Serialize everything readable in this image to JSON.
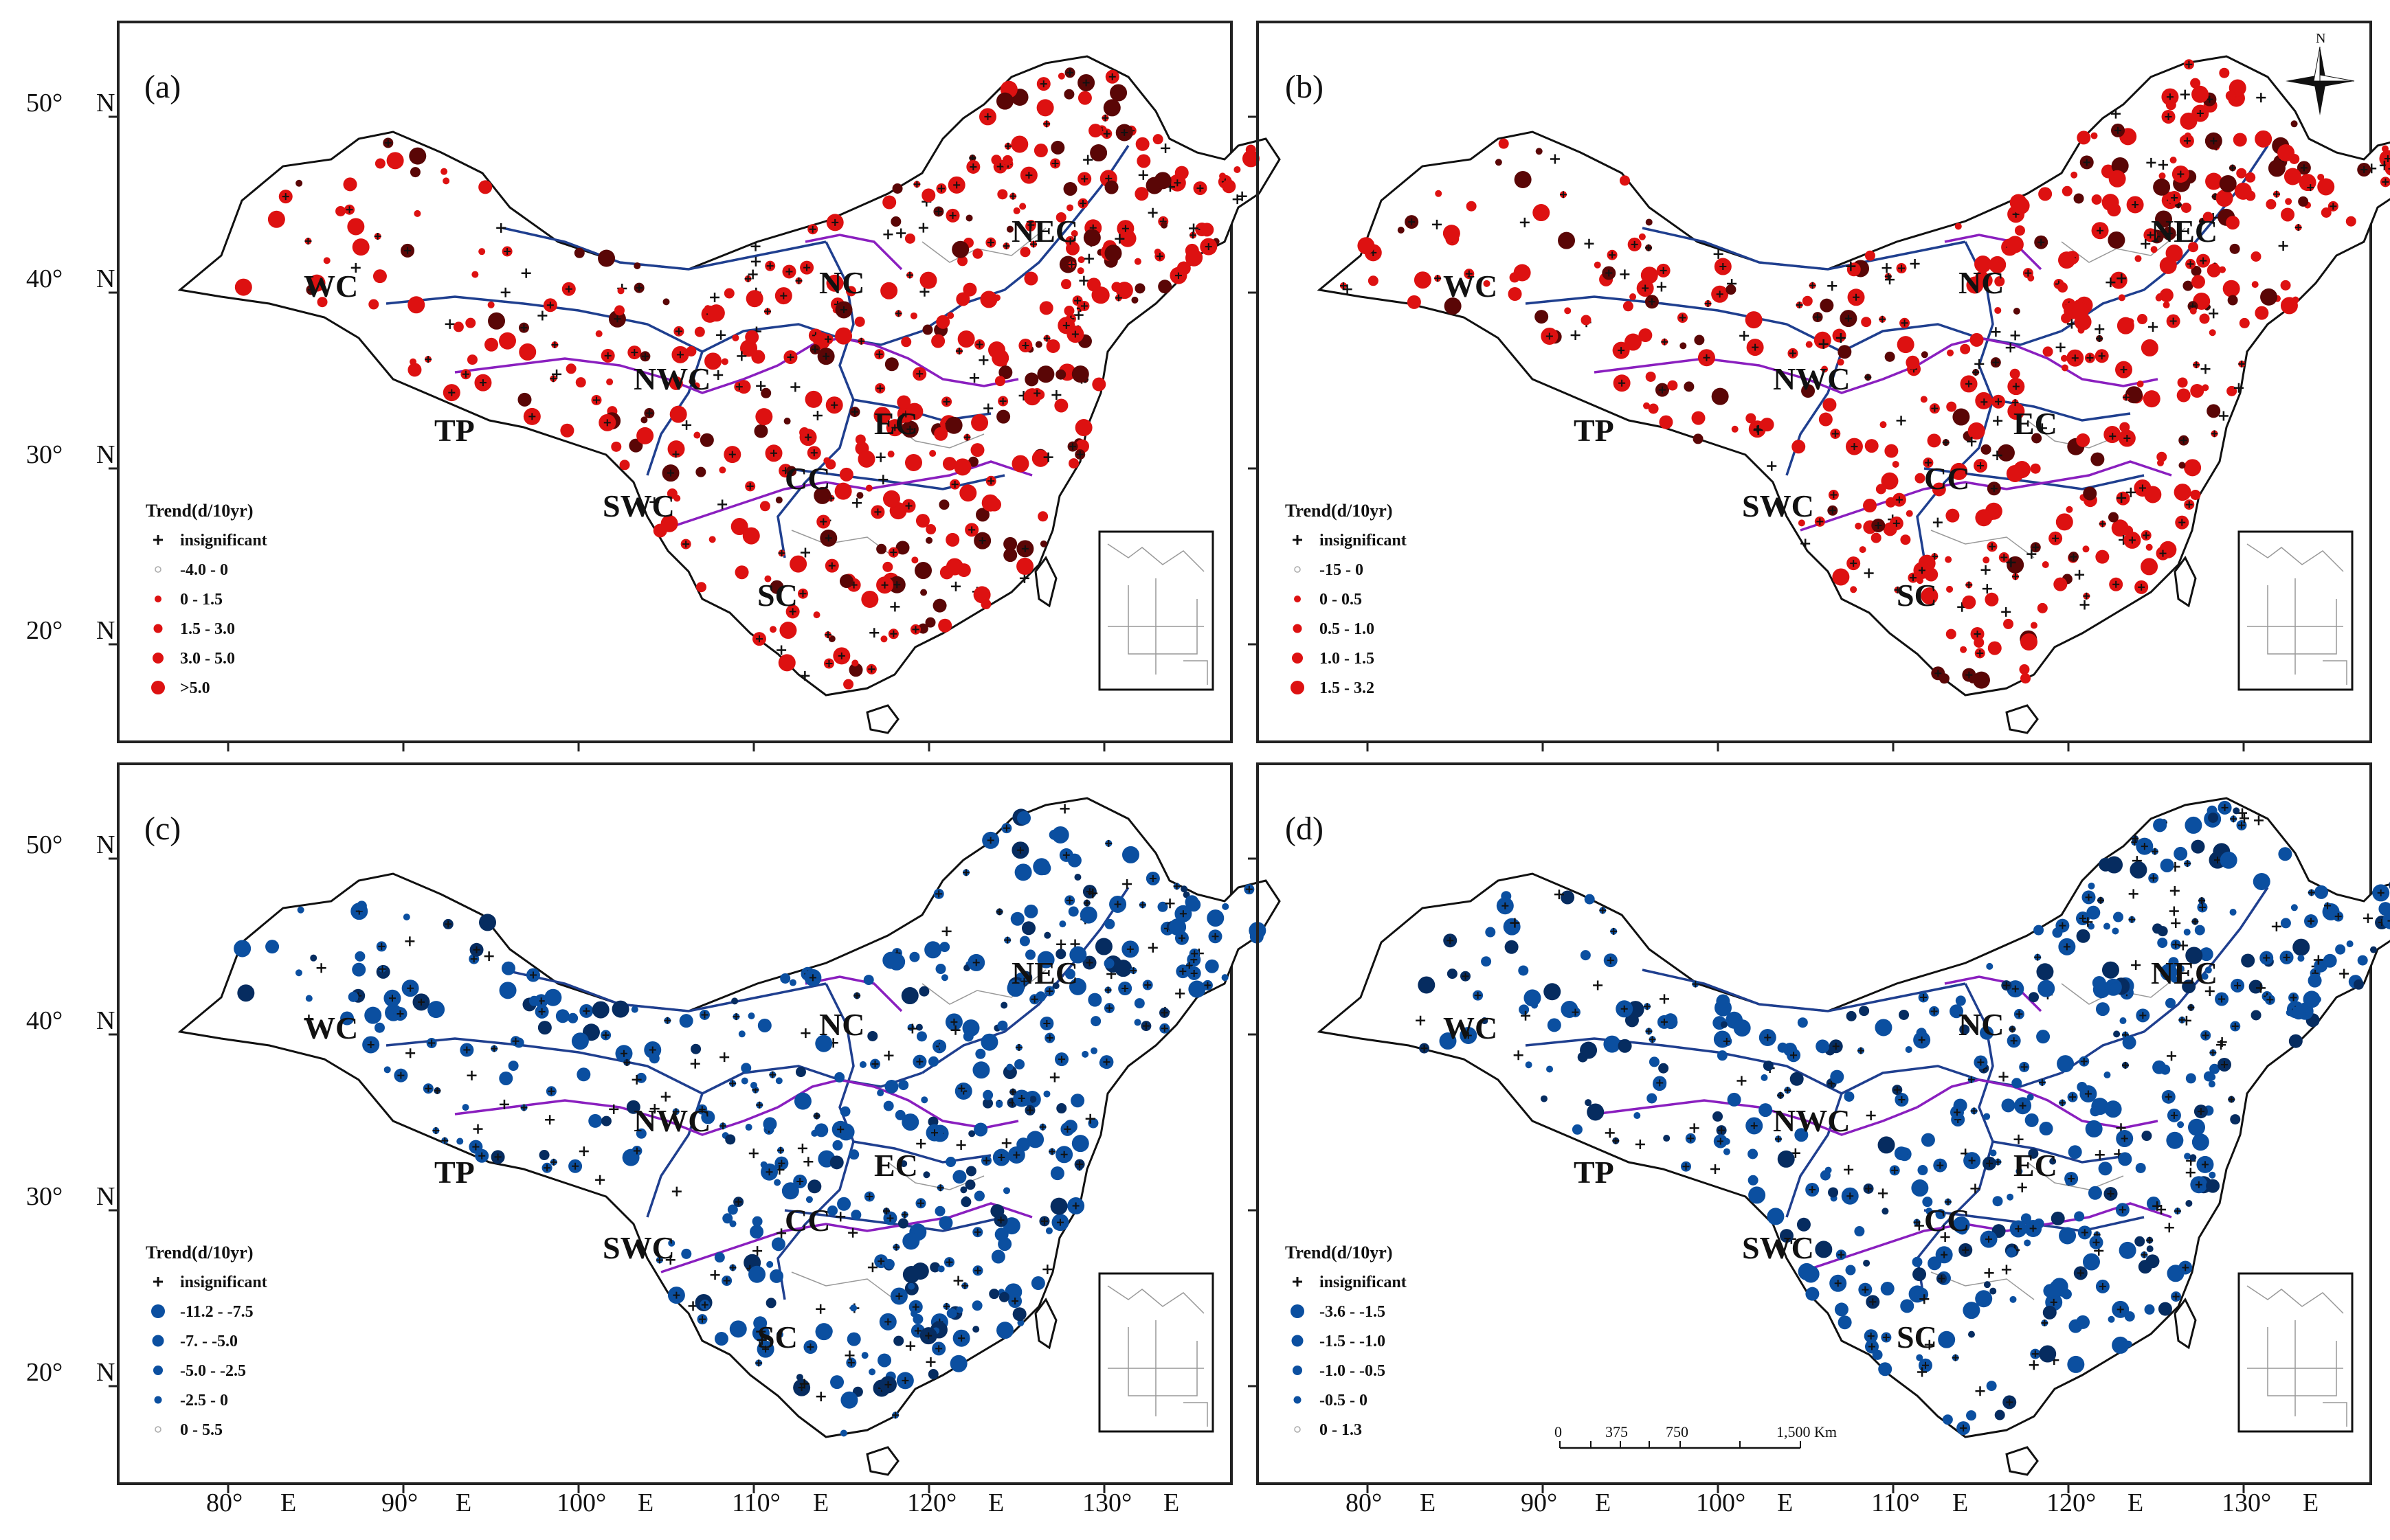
{
  "figure": {
    "axes": {
      "lat_ticks": [
        "50°",
        "40°",
        "30°",
        "20°"
      ],
      "lat_suffix": "N",
      "lon_ticks": [
        "80°",
        "90°",
        "100°",
        "110°",
        "120°",
        "130°"
      ],
      "lon_suffix": "E"
    },
    "regions": [
      "WC",
      "NC",
      "NEC",
      "NWC",
      "TP",
      "EC",
      "CC",
      "SWC",
      "SC"
    ],
    "colors": {
      "red": "#dd1111",
      "dark_red": "#5a0606",
      "blue": "#0b4fa0",
      "dark_blue": "#062c60"
    },
    "panels": [
      {
        "label": "(a)",
        "color_scheme": "red",
        "legend_title": "Trend(d/10yr)",
        "legend_items": [
          "insignificant",
          "-4.0 - 0",
          "0 - 1.5",
          "1.5 - 3.0",
          "3.0 - 5.0",
          ">5.0"
        ]
      },
      {
        "label": "(b)",
        "color_scheme": "red",
        "legend_title": "Trend(d/10yr)",
        "legend_items": [
          "insignificant",
          "-15 - 0",
          "0 - 0.5",
          "0.5 - 1.0",
          "1.0 - 1.5",
          "1.5 - 3.2"
        ]
      },
      {
        "label": "(c)",
        "color_scheme": "blue",
        "legend_title": "Trend(d/10yr)",
        "legend_items": [
          "insignificant",
          "-11.2 - -7.5",
          "-7. - -5.0",
          "-5.0 - -2.5",
          "-2.5 - 0",
          "0 - 5.5"
        ]
      },
      {
        "label": "(d)",
        "color_scheme": "blue",
        "legend_title": "Trend(d/10yr)",
        "legend_items": [
          "insignificant",
          "-3.6 - -1.5",
          "-1.5 - -1.0",
          "-1.0 - -0.5",
          "-0.5 - 0",
          "0 - 1.3"
        ]
      }
    ],
    "compass": {
      "north": "N"
    },
    "scale_bar": {
      "labels": [
        "0",
        "375",
        "750",
        "1,500 Km"
      ]
    }
  }
}
